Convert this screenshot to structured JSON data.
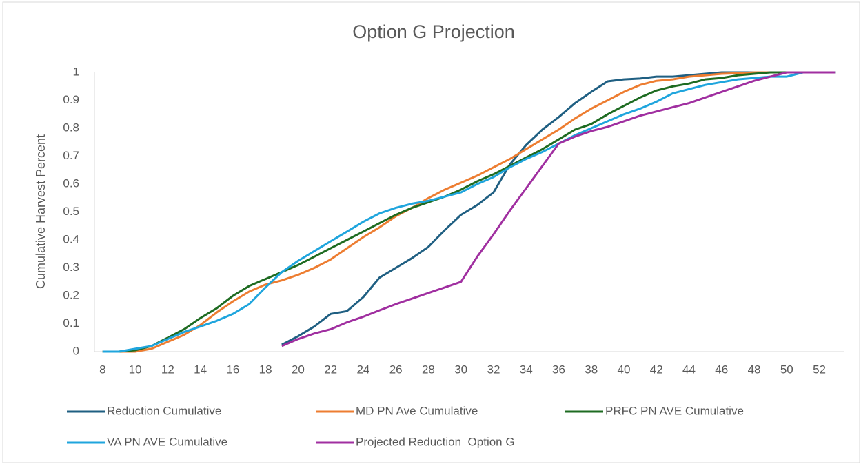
{
  "chart_data": {
    "type": "line",
    "title": "Option G Projection",
    "y_label": "Cumulative Harvest Percent",
    "categories": [
      8,
      null,
      10,
      null,
      12,
      null,
      14,
      null,
      16,
      null,
      18,
      null,
      20,
      null,
      22,
      null,
      24,
      null,
      26,
      null,
      28,
      null,
      30,
      null,
      32,
      null,
      34,
      null,
      36,
      null,
      38,
      null,
      40,
      null,
      42,
      null,
      44,
      null,
      46,
      null,
      48,
      null,
      50,
      null,
      52,
      null
    ],
    "series": [
      {
        "name": "Reduction Cumulative",
        "color": "#1f5f82",
        "values": [
          null,
          null,
          null,
          null,
          null,
          null,
          null,
          null,
          null,
          null,
          null,
          0.025,
          0.055,
          0.09,
          0.135,
          0.145,
          0.195,
          0.265,
          0.3,
          0.335,
          0.375,
          0.435,
          0.49,
          0.525,
          0.57,
          0.67,
          0.74,
          0.795,
          0.84,
          0.89,
          0.93,
          0.968,
          0.975,
          0.978,
          0.985,
          0.985,
          0.99,
          0.995,
          1,
          1,
          1,
          1,
          1,
          1,
          1,
          1
        ]
      },
      {
        "name": "MD PN Ave Cumulative",
        "color": "#ed7d31",
        "values": [
          0,
          0,
          0,
          0.01,
          0.035,
          0.06,
          0.095,
          0.14,
          0.18,
          0.215,
          0.24,
          0.255,
          0.275,
          0.3,
          0.33,
          0.37,
          0.41,
          0.445,
          0.485,
          0.515,
          0.55,
          0.58,
          0.605,
          0.63,
          0.66,
          0.69,
          0.725,
          0.76,
          0.795,
          0.835,
          0.87,
          0.9,
          0.93,
          0.955,
          0.97,
          0.975,
          0.985,
          0.99,
          0.995,
          0.997,
          1,
          1,
          1,
          1,
          1,
          1
        ]
      },
      {
        "name": "PRFC PN AVE Cumulative",
        "color": "#1e6b21",
        "values": [
          0,
          0,
          0.005,
          0.02,
          0.05,
          0.08,
          0.12,
          0.155,
          0.2,
          0.235,
          0.26,
          0.285,
          0.31,
          0.34,
          0.37,
          0.4,
          0.43,
          0.46,
          0.49,
          0.515,
          0.535,
          0.555,
          0.58,
          0.61,
          0.635,
          0.665,
          0.695,
          0.725,
          0.76,
          0.795,
          0.815,
          0.85,
          0.88,
          0.91,
          0.935,
          0.95,
          0.96,
          0.975,
          0.98,
          0.99,
          0.995,
          1,
          1,
          1,
          1,
          1
        ]
      },
      {
        "name": "VA PN AVE Cumulative",
        "color": "#1fa5dd",
        "values": [
          0,
          0,
          0.01,
          0.02,
          0.045,
          0.07,
          0.09,
          0.11,
          0.135,
          0.17,
          0.23,
          0.285,
          0.325,
          0.36,
          0.395,
          0.43,
          0.465,
          0.495,
          0.515,
          0.53,
          0.54,
          0.555,
          0.57,
          0.6,
          0.625,
          0.66,
          0.69,
          0.715,
          0.745,
          0.775,
          0.8,
          0.825,
          0.85,
          0.87,
          0.895,
          0.925,
          0.94,
          0.955,
          0.965,
          0.975,
          0.98,
          0.985,
          0.985,
          1,
          1,
          1
        ]
      },
      {
        "name": "Projected Reduction  Option G",
        "color": "#a02fa0",
        "values": [
          null,
          null,
          null,
          null,
          null,
          null,
          null,
          null,
          null,
          null,
          null,
          0.02,
          0.045,
          0.065,
          0.08,
          0.105,
          0.125,
          0.148,
          0.17,
          0.19,
          0.21,
          0.23,
          0.25,
          0.34,
          0.42,
          0.505,
          0.585,
          0.665,
          0.745,
          0.77,
          0.79,
          0.805,
          0.825,
          0.845,
          0.86,
          0.875,
          0.89,
          0.91,
          0.93,
          0.95,
          0.97,
          0.985,
          1,
          1,
          1,
          1
        ]
      }
    ],
    "ylim": [
      0,
      1
    ],
    "yticks": [
      0,
      0.1,
      0.2,
      0.3,
      0.4,
      0.5,
      0.6,
      0.7,
      0.8,
      0.9,
      1
    ],
    "grid": false,
    "legend": "bottom"
  }
}
